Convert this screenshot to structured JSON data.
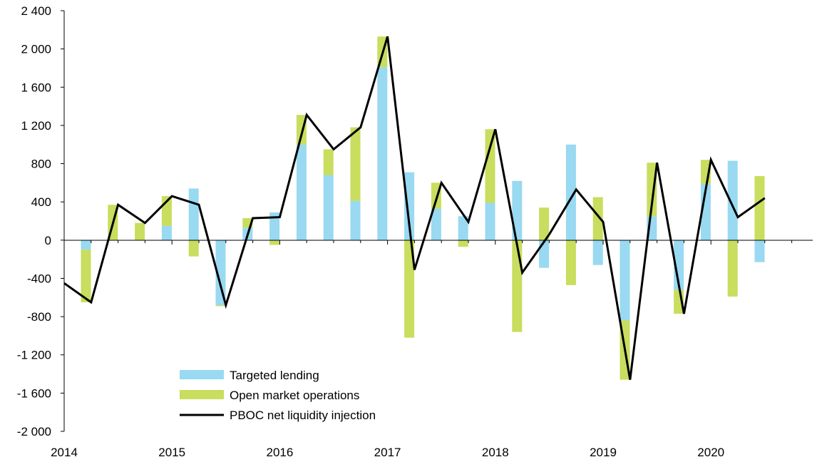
{
  "chart_data": {
    "type": "bar",
    "stacked": true,
    "title": "",
    "xlabel": "",
    "ylabel": "",
    "ylim": [
      -2000,
      2400
    ],
    "yticks": [
      2400,
      2000,
      1600,
      1200,
      800,
      400,
      0,
      -400,
      -800,
      -1200,
      -1600,
      -2000
    ],
    "ytick_labels": [
      "2 400",
      "2 000",
      "1 600",
      "1 200",
      "800",
      "400",
      "0",
      "-400",
      "-800",
      "-1 200",
      "-1 600",
      "-2 000"
    ],
    "x_tick_labels": [
      "2014",
      "2015",
      "2016",
      "2017",
      "2018",
      "2019",
      "2020"
    ],
    "categories": [
      "2014Q1",
      "2014Q2",
      "2014Q3",
      "2014Q4",
      "2015Q1",
      "2015Q2",
      "2015Q3",
      "2015Q4",
      "2016Q1",
      "2016Q2",
      "2016Q3",
      "2016Q4",
      "2017Q1",
      "2017Q2",
      "2017Q3",
      "2017Q4",
      "2018Q1",
      "2018Q2",
      "2018Q3",
      "2018Q4",
      "2019Q1",
      "2019Q2",
      "2019Q3",
      "2019Q4",
      "2020Q1",
      "2020Q2",
      "2020Q3"
    ],
    "series": [
      {
        "name": "Targeted lending",
        "kind": "bar",
        "color": "#99d9f2",
        "values": [
          -100,
          0,
          0,
          150,
          540,
          -680,
          130,
          290,
          1000,
          680,
          410,
          1810,
          710,
          330,
          250,
          390,
          620,
          -290,
          1000,
          -260,
          -840,
          250,
          -520,
          590,
          830,
          -230,
          null
        ]
      },
      {
        "name": "Open market operations",
        "kind": "bar",
        "color": "#c9dd5e",
        "values": [
          -550,
          370,
          180,
          310,
          -170,
          -10,
          100,
          -50,
          310,
          270,
          770,
          320,
          -1020,
          270,
          -70,
          770,
          -960,
          340,
          -470,
          450,
          -620,
          560,
          -250,
          250,
          -590,
          670,
          null
        ]
      },
      {
        "name": "PBOC net liquidity injection",
        "kind": "line",
        "color": "#000000",
        "x": [
          "2013Q4",
          "2014Q1",
          "2014Q2",
          "2014Q3",
          "2014Q4",
          "2015Q1",
          "2015Q2",
          "2015Q3",
          "2015Q4",
          "2016Q1",
          "2016Q2",
          "2016Q3",
          "2016Q4",
          "2017Q1",
          "2017Q2",
          "2017Q3",
          "2017Q4",
          "2018Q1",
          "2018Q2",
          "2018Q3",
          "2018Q4",
          "2019Q1",
          "2019Q2",
          "2019Q3",
          "2019Q4",
          "2020Q1",
          "2020Q2"
        ],
        "values": [
          -450,
          -650,
          370,
          180,
          460,
          370,
          -680,
          230,
          240,
          1310,
          950,
          1180,
          2130,
          -310,
          600,
          190,
          1160,
          -340,
          60,
          530,
          190,
          -1460,
          810,
          -770,
          840,
          240,
          440
        ]
      }
    ],
    "legend": {
      "position": "bottom-left",
      "entries": [
        "Targeted lending",
        "Open market operations",
        "PBOC net liquidity injection"
      ]
    }
  }
}
